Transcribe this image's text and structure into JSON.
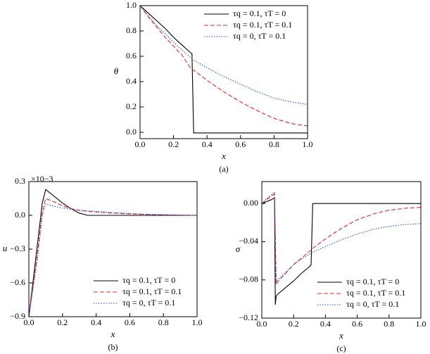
{
  "chart_data": [
    {
      "type": "line",
      "caption": "(a)",
      "xlabel": "x",
      "ylabel": "θ",
      "legend": "upper right",
      "xlim": [
        0,
        1
      ],
      "ylim": [
        -0.05,
        1.0
      ],
      "xticks": [
        {
          "value": 0,
          "label": "0.0"
        },
        0.2,
        0.4,
        0.6,
        0.8,
        {
          "value": 1,
          "label": "1.0"
        }
      ],
      "yticks": [
        {
          "value": 0,
          "label": "0.0"
        },
        0.2,
        0.4,
        0.6,
        0.8,
        {
          "value": 1,
          "label": "1.0"
        }
      ],
      "x": [
        0,
        0.05,
        0.1,
        0.15,
        0.2,
        0.25,
        0.3,
        0.31,
        0.32,
        0.4,
        0.5,
        0.6,
        0.7,
        0.8,
        0.9,
        1.0
      ],
      "series": [
        {
          "name": "τq = 0.1, τT = 0",
          "color": "#000000",
          "dash": "solid",
          "values": [
            1,
            0.94,
            0.88,
            0.82,
            0.75,
            0.69,
            0.63,
            0.62,
            -0.005,
            -0.005,
            -0.005,
            -0.005,
            -0.005,
            -0.005,
            -0.005,
            -0.005
          ]
        },
        {
          "name": "τq = 0.1, τT = 0.1",
          "color": "#e8262a",
          "dash": "dashed",
          "values": [
            1,
            0.91,
            0.83,
            0.75,
            0.68,
            0.61,
            0.51,
            0.5,
            0.49,
            0.41,
            0.32,
            0.24,
            0.17,
            0.11,
            0.07,
            0.05
          ]
        },
        {
          "name": "τq = 0, τT = 0.1",
          "color": "#1f4fc8",
          "dash": "dotted",
          "values": [
            1,
            0.92,
            0.84,
            0.78,
            0.71,
            0.65,
            0.59,
            0.58,
            0.57,
            0.51,
            0.44,
            0.38,
            0.32,
            0.27,
            0.24,
            0.22
          ]
        }
      ]
    },
    {
      "type": "line",
      "caption": "(b)",
      "xlabel": "x",
      "ylabel": "u",
      "annotation": "×10−3",
      "legend": "lower right",
      "xlim": [
        0,
        1
      ],
      "ylim": [
        -0.9,
        0.3
      ],
      "xticks": [
        {
          "value": 0,
          "label": "0.0"
        },
        0.2,
        0.4,
        0.6,
        0.8,
        {
          "value": 1,
          "label": "1.0"
        }
      ],
      "yticks": [
        0.3,
        {
          "value": 0,
          "label": "0.0"
        },
        {
          "value": -0.3,
          "label": "−0.3"
        },
        {
          "value": -0.6,
          "label": "−0.6"
        },
        {
          "value": -0.9,
          "label": "−0.9"
        }
      ],
      "x": [
        0,
        0.02,
        0.05,
        0.08,
        0.1,
        0.15,
        0.2,
        0.25,
        0.3,
        0.35,
        0.4,
        0.5,
        0.6,
        0.7,
        0.8,
        0.9,
        1.0
      ],
      "series": [
        {
          "name": "τq = 0.1, τT = 0",
          "color": "#000000",
          "dash": "solid",
          "values": [
            -0.9,
            -0.65,
            -0.27,
            0.11,
            0.23,
            0.17,
            0.11,
            0.06,
            0.02,
            0,
            0,
            0,
            0,
            0,
            0,
            0,
            0
          ]
        },
        {
          "name": "τq = 0.1, τT = 0.1",
          "color": "#e8262a",
          "dash": "dashed",
          "values": [
            -0.9,
            -0.68,
            -0.35,
            0.03,
            0.15,
            0.12,
            0.085,
            0.06,
            0.045,
            0.035,
            0.03,
            0.02,
            0.012,
            0.008,
            0.005,
            0.002,
            0
          ]
        },
        {
          "name": "τq = 0, τT = 0.1",
          "color": "#1f4fc8",
          "dash": "dotted",
          "values": [
            -0.9,
            -0.7,
            -0.4,
            0,
            0.1,
            0.08,
            0.065,
            0.055,
            0.045,
            0.04,
            0.035,
            0.025,
            0.017,
            0.01,
            0.006,
            0.003,
            0
          ]
        }
      ]
    },
    {
      "type": "line",
      "caption": "(c)",
      "xlabel": "x",
      "ylabel": "σ",
      "legend": "lower right",
      "xlim": [
        0,
        1
      ],
      "ylim": [
        -0.12,
        0.023
      ],
      "xticks": [
        {
          "value": 0,
          "label": "0.0"
        },
        0.2,
        0.4,
        0.6,
        0.8,
        {
          "value": 1,
          "label": "1.0"
        }
      ],
      "yticks": [
        {
          "value": 0,
          "label": "0.00"
        },
        {
          "value": -0.04,
          "label": "−0.04"
        },
        {
          "value": -0.08,
          "label": "−0.08"
        },
        {
          "value": -0.12,
          "label": "−0.12"
        }
      ],
      "x": [
        0,
        0.03,
        0.06,
        0.08,
        0.085,
        0.09,
        0.1,
        0.15,
        0.2,
        0.25,
        0.3,
        0.31,
        0.32,
        0.4,
        0.5,
        0.6,
        0.7,
        0.8,
        0.9,
        1.0
      ],
      "series": [
        {
          "name": "τq = 0.1, τT = 0",
          "color": "#000000",
          "dash": "solid",
          "values": [
            0,
            0.002,
            0.004,
            0.006,
            -0.106,
            -0.097,
            -0.095,
            -0.088,
            -0.081,
            -0.073,
            -0.066,
            -0.064,
            0,
            0,
            0,
            0,
            0,
            0,
            0,
            0
          ]
        },
        {
          "name": "τq = 0.1, τT = 0.1",
          "color": "#e8262a",
          "dash": "dashed",
          "values": [
            0,
            0.004,
            0.008,
            0.01,
            -0.04,
            -0.085,
            -0.082,
            -0.073,
            -0.064,
            -0.057,
            -0.05,
            -0.049,
            -0.047,
            -0.037,
            -0.026,
            -0.017,
            -0.011,
            -0.007,
            -0.005,
            -0.004
          ]
        },
        {
          "name": "τq = 0, τT = 0.1",
          "color": "#1f4fc8",
          "dash": "dotted",
          "values": [
            0,
            0.005,
            0.009,
            0.012,
            -0.03,
            -0.082,
            -0.08,
            -0.072,
            -0.064,
            -0.058,
            -0.053,
            -0.052,
            -0.051,
            -0.045,
            -0.038,
            -0.032,
            -0.027,
            -0.024,
            -0.022,
            -0.021
          ]
        }
      ]
    }
  ]
}
